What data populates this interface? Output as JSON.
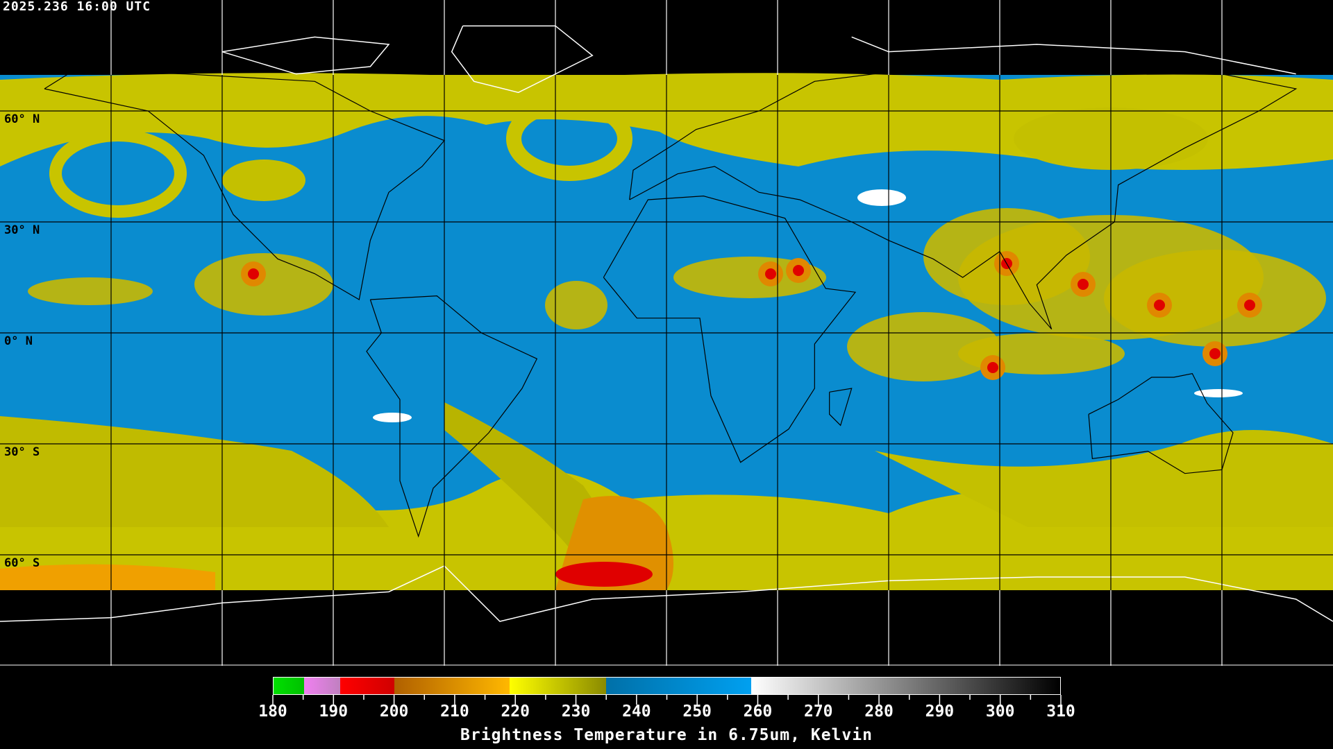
{
  "header": {
    "timestamp": "2025.236 16:00 UTC"
  },
  "map": {
    "projection": "equirectangular",
    "grid_lon_step_deg": 30,
    "grid_lat_step_deg": 30,
    "lat_labels": [
      "60° N",
      "30° N",
      "0° N",
      "30° S",
      "60° S"
    ],
    "colors": {
      "background": "#000000",
      "coastline_land": "#000000",
      "coastline_polar": "#ffffff",
      "grid_in_data": "#000000",
      "grid_outside_data": "#ffffff"
    }
  },
  "colorbar": {
    "title": "Brightness Temperature in 6.75um, Kelvin",
    "min": 180,
    "max": 310,
    "tick_labels": [
      "180",
      "190",
      "200",
      "210",
      "220",
      "230",
      "240",
      "250",
      "260",
      "270",
      "280",
      "290",
      "300",
      "310"
    ],
    "segments": [
      {
        "from": 180,
        "to": 185,
        "start": "#00e000",
        "end": "#00c000"
      },
      {
        "from": 185,
        "to": 191,
        "start": "#f080f0",
        "end": "#c080c0"
      },
      {
        "from": 191,
        "to": 200,
        "start": "#ff0000",
        "end": "#d00000"
      },
      {
        "from": 200,
        "to": 219,
        "start": "#b06000",
        "end": "#ffb800"
      },
      {
        "from": 219,
        "to": 235,
        "start": "#ffff00",
        "end": "#8a8a00"
      },
      {
        "from": 235,
        "to": 259,
        "start": "#0070a8",
        "end": "#00a0f0"
      },
      {
        "from": 259,
        "to": 310,
        "start": "#ffffff",
        "end": "#000000"
      }
    ]
  }
}
